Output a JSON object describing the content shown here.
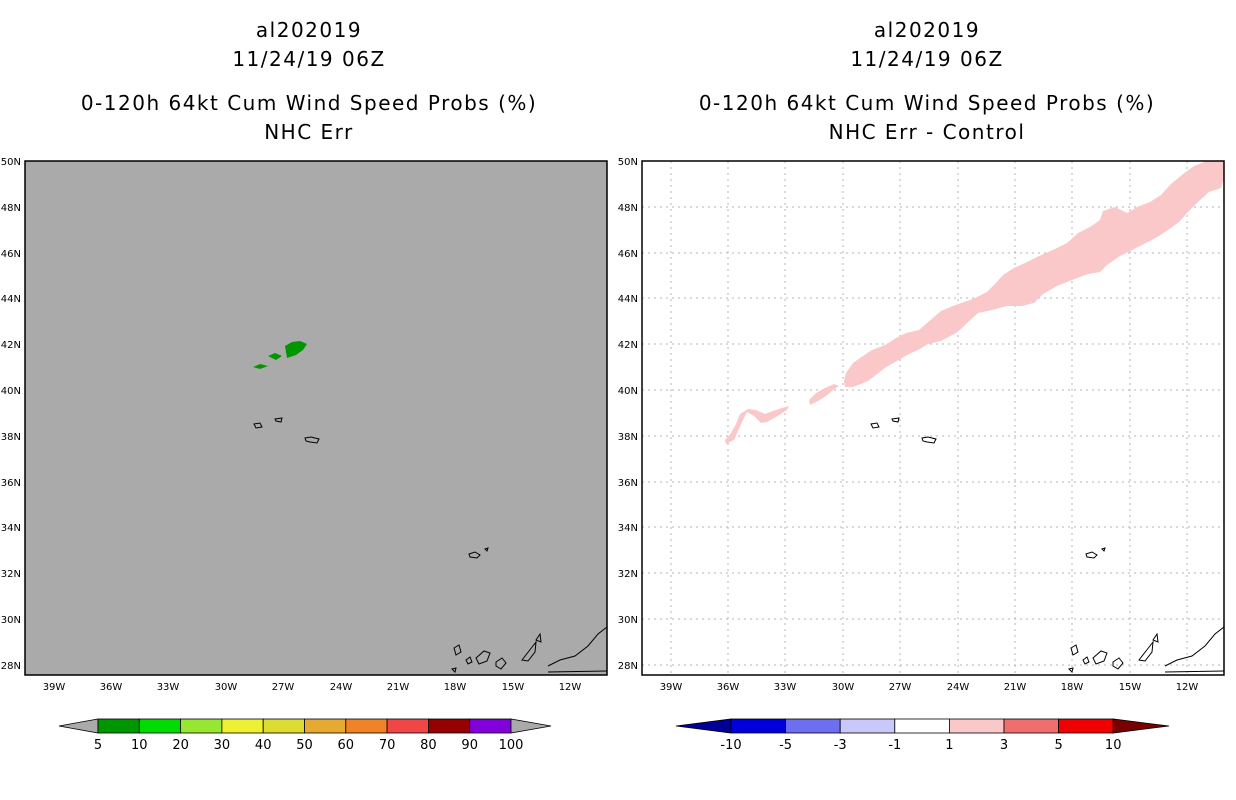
{
  "left_panel": {
    "title_storm": "al202019",
    "title_time": "11/24/19 06Z",
    "title_product": "0-120h 64kt Cum Wind Speed Probs (%)",
    "title_subtitle": "NHC Err",
    "background_color": "#aaaaaa",
    "feature_color": "#009600",
    "colorbar": {
      "colors": [
        "#009600",
        "#00dc00",
        "#96e632",
        "#f0f032",
        "#dcdc32",
        "#e6aa32",
        "#f08228",
        "#f04646",
        "#960000",
        "#8200dc"
      ],
      "labels": [
        "5",
        "10",
        "20",
        "30",
        "40",
        "50",
        "60",
        "70",
        "80",
        "90",
        "100"
      ],
      "extend_color": "#aaaaaa"
    }
  },
  "right_panel": {
    "title_storm": "al202019",
    "title_time": "11/24/19 06Z",
    "title_product": "0-120h 64kt Cum Wind Speed Probs (%)",
    "title_subtitle": "NHC Err - Control",
    "background_color": "#ffffff",
    "feature_color": "#fac8c8",
    "colorbar": {
      "colors": [
        "#0000dc",
        "#6e6ef0",
        "#c8c8fa",
        "#ffffff",
        "#fac8c8",
        "#f06e6e",
        "#f00000"
      ],
      "labels": [
        "-10",
        "-5",
        "-3",
        "-1",
        "1",
        "3",
        "5",
        "10"
      ],
      "extend_low_color": "#000096",
      "extend_high_color": "#780000"
    }
  },
  "map": {
    "lat_labels": [
      "50N",
      "48N",
      "46N",
      "44N",
      "42N",
      "40N",
      "38N",
      "36N",
      "34N",
      "32N",
      "30N",
      "28N"
    ],
    "lon_labels": [
      "39W",
      "36W",
      "33W",
      "30W",
      "27W",
      "24W",
      "21W",
      "18W",
      "15W",
      "12W"
    ]
  }
}
